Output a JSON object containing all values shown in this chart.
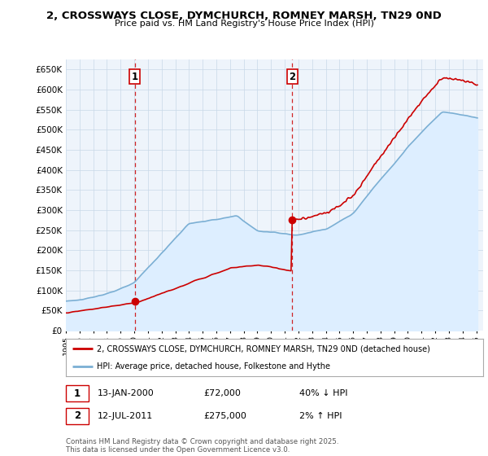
{
  "title": "2, CROSSWAYS CLOSE, DYMCHURCH, ROMNEY MARSH, TN29 0ND",
  "subtitle": "Price paid vs. HM Land Registry's House Price Index (HPI)",
  "ylim": [
    0,
    675000
  ],
  "yticks": [
    0,
    50000,
    100000,
    150000,
    200000,
    250000,
    300000,
    350000,
    400000,
    450000,
    500000,
    550000,
    600000,
    650000
  ],
  "year_start": 1995,
  "year_end": 2025,
  "sale1_date": 2000.04,
  "sale1_price": 72000,
  "sale2_date": 2011.54,
  "sale2_price": 275000,
  "sale1_year_label": "13-JAN-2000",
  "sale1_amount": "£72,000",
  "sale1_hpi": "40% ↓ HPI",
  "sale2_year_label": "12-JUL-2011",
  "sale2_amount": "£275,000",
  "sale2_hpi": "2% ↑ HPI",
  "line_color_property": "#cc0000",
  "line_color_hpi": "#7bafd4",
  "hpi_fill_color": "#ddeeff",
  "legend_property": "2, CROSSWAYS CLOSE, DYMCHURCH, ROMNEY MARSH, TN29 0ND (detached house)",
  "legend_hpi": "HPI: Average price, detached house, Folkestone and Hythe",
  "footer": "Contains HM Land Registry data © Crown copyright and database right 2025.\nThis data is licensed under the Open Government Licence v3.0.",
  "background_color": "#ffffff",
  "chart_bg_color": "#eef4fb",
  "grid_color": "#c8d8e8"
}
